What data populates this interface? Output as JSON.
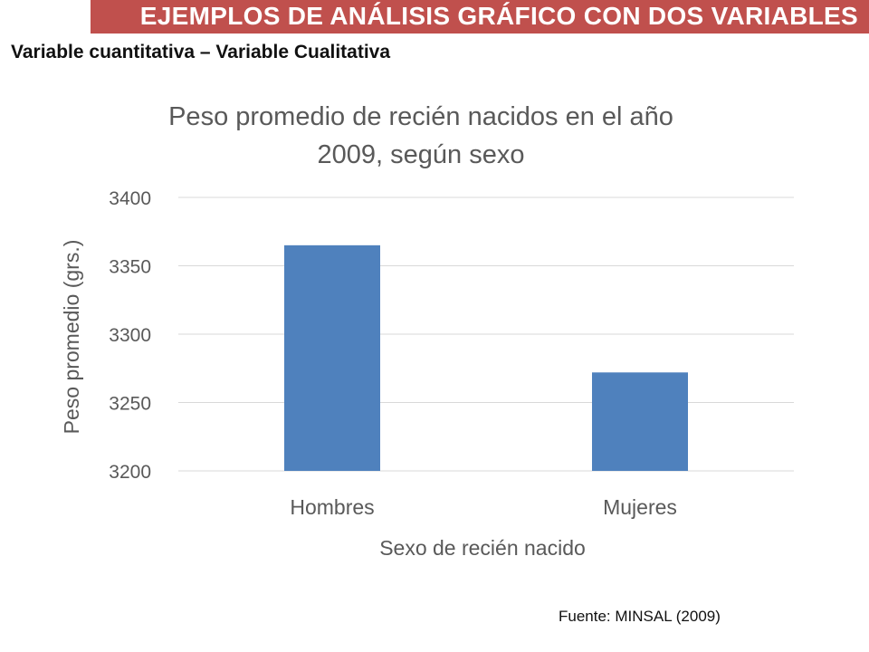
{
  "header": {
    "banner_title": "EJEMPLOS DE ANÁLISIS GRÁFICO CON DOS VARIABLES",
    "subtitle": "Variable cuantitativa – Variable Cualitativa",
    "banner_color": "#c0504d"
  },
  "chart_data": {
    "type": "bar",
    "title_lines": [
      "Peso promedio de recién nacidos en el año",
      "2009, según sexo"
    ],
    "categories": [
      "Hombres",
      "Mujeres"
    ],
    "values": [
      3365,
      3272
    ],
    "xlabel": "Sexo de recién nacido",
    "ylabel": "Peso promedio (grs.)",
    "ylim": [
      3200,
      3400
    ],
    "yticks": [
      3200,
      3250,
      3300,
      3350,
      3400
    ],
    "grid": true,
    "bar_color": "#4f81bd"
  },
  "footer": {
    "source": "Fuente: MINSAL (2009)"
  }
}
